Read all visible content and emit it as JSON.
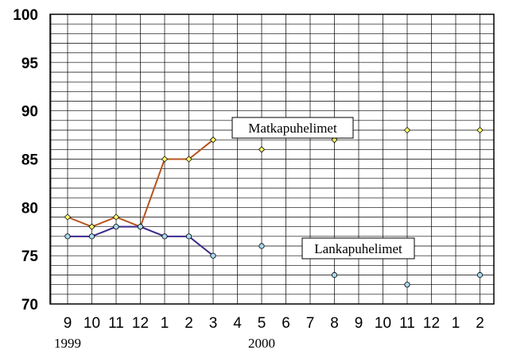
{
  "chart_data": {
    "type": "line",
    "x_labels": [
      "9",
      "10",
      "11",
      "12",
      "1",
      "2",
      "3",
      "4",
      "5",
      "6",
      "7",
      "8",
      "9",
      "10",
      "11",
      "12",
      "1",
      "2"
    ],
    "year_labels": [
      {
        "label": "1999",
        "at_index": 0
      },
      {
        "label": "2000",
        "at_index": 8
      }
    ],
    "ylim": [
      70,
      100
    ],
    "yticks": [
      70,
      75,
      80,
      85,
      90,
      95,
      100
    ],
    "grid": true,
    "series": [
      {
        "name": "Matkapuhelimet",
        "line_color": "#b5541e",
        "marker_color": "#ffff66",
        "marker": "diamond",
        "connected_until_index": 6,
        "points": [
          [
            0,
            79
          ],
          [
            1,
            78
          ],
          [
            2,
            79
          ],
          [
            3,
            78
          ],
          [
            4,
            85
          ],
          [
            5,
            85
          ],
          [
            6,
            87
          ],
          [
            8,
            86
          ],
          [
            11,
            87
          ],
          [
            14,
            88
          ],
          [
            17,
            88
          ]
        ]
      },
      {
        "name": "Lankapuhelimet",
        "line_color": "#3b2a8c",
        "marker_color": "#a8d8ec",
        "marker": "circle",
        "connected_until_index": 6,
        "points": [
          [
            0,
            77
          ],
          [
            1,
            77
          ],
          [
            2,
            78
          ],
          [
            3,
            78
          ],
          [
            4,
            77
          ],
          [
            5,
            77
          ],
          [
            6,
            75
          ],
          [
            8,
            76
          ],
          [
            11,
            73
          ],
          [
            14,
            72
          ],
          [
            17,
            73
          ]
        ]
      }
    ]
  }
}
